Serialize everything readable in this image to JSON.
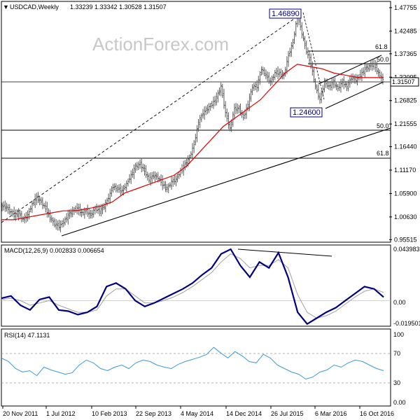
{
  "header": {
    "symbol": "USDCAD,Weekly",
    "ohlc": "1.33239 1.33342 1.30528 1.31507"
  },
  "watermark": "ActionForex.com",
  "colors": {
    "candle": "#4b4b4b",
    "ma": "#e00000",
    "macd": "#000080",
    "signal": "#a0a0a0",
    "rsi": "#3a9ad9",
    "grid": "#000000"
  },
  "chart_data": [
    {
      "type": "candlestick",
      "title": "USDCAD,Weekly",
      "ylim": [
        0.9525,
        1.4853
      ],
      "y_ticks": [
        "1.47755",
        "1.42485",
        "1.37365",
        "1.32095",
        "1.26825",
        "1.21555",
        "1.16440",
        "1.11170",
        "1.05900",
        "1.00630",
        "0.95515"
      ],
      "x_ticks": [
        "20 Nov 2011",
        "1 Jul 2012",
        "10 Feb 2013",
        "22 Sep 2013",
        "4 May 2014",
        "14 Dec 2014",
        "26 Jul 2015",
        "6 Mar 2016",
        "16 Oct 2016"
      ],
      "annotations": [
        "1.46890",
        "1.24600",
        "61.8",
        "50.0",
        "50.0",
        "61.8"
      ],
      "last_price": "1.31507",
      "close_series": [
        1.03,
        1.02,
        1.01,
        1.015,
        1.0,
        1.01,
        1.035,
        1.05,
        1.04,
        1.025,
        1.005,
        0.99,
        0.985,
        0.995,
        1.01,
        1.02,
        1.025,
        1.015,
        1.02,
        1.01,
        1.025,
        1.02,
        1.03,
        1.05,
        1.075,
        1.07,
        1.065,
        1.08,
        1.1,
        1.12,
        1.125,
        1.11,
        1.09,
        1.1,
        1.095,
        1.08,
        1.07,
        1.085,
        1.09,
        1.11,
        1.125,
        1.14,
        1.17,
        1.22,
        1.24,
        1.25,
        1.26,
        1.275,
        1.3,
        1.24,
        1.205,
        1.25,
        1.25,
        1.23,
        1.26,
        1.3,
        1.3,
        1.34,
        1.325,
        1.31,
        1.33,
        1.33,
        1.325,
        1.37,
        1.4,
        1.46,
        1.42,
        1.38,
        1.35,
        1.3,
        1.27,
        1.31,
        1.3,
        1.31,
        1.295,
        1.31,
        1.3,
        1.32,
        1.315,
        1.325,
        1.34,
        1.345,
        1.35,
        1.33,
        1.315
      ],
      "ma_series": [
        1.0,
        1.0,
        1.005,
        1.01,
        1.015,
        1.02,
        1.02,
        1.025,
        1.03,
        1.04,
        1.06,
        1.07,
        1.08,
        1.09,
        1.1,
        1.12,
        1.15,
        1.18,
        1.21,
        1.23,
        1.25,
        1.27,
        1.3,
        1.33,
        1.35,
        1.345,
        1.34,
        1.33,
        1.325,
        1.32,
        1.32,
        1.32
      ],
      "trendlines": {
        "support_from": [
          "1 Jul 2012",
          0.97
        ],
        "support_to": [
          "end",
          1.21
        ],
        "channel_upper": [
          1.32,
          1.37
        ],
        "channel_lower": [
          1.25,
          1.31
        ]
      }
    },
    {
      "type": "line",
      "title": "MACD(12,26,9) 0.002833 0.006654",
      "y_ticks": [
        "0.043983",
        "0.00",
        "-0.019501"
      ],
      "macd": [
        0.002,
        0.004,
        -0.004,
        -0.008,
        0.001,
        0.003,
        -0.008,
        -0.009,
        -0.012,
        -0.01,
        -0.005,
        0.012,
        0.015,
        0.01,
        0.0,
        -0.005,
        -0.002,
        0.002,
        0.006,
        0.01,
        0.015,
        0.022,
        0.028,
        0.04,
        0.044,
        0.03,
        0.02,
        0.033,
        0.028,
        0.041,
        0.02,
        -0.01,
        -0.02,
        -0.015,
        -0.01,
        -0.006,
        0.0,
        0.006,
        0.012,
        0.01,
        0.003
      ],
      "signal": [
        0.001,
        0.002,
        0.0,
        -0.004,
        -0.002,
        0.0,
        -0.004,
        -0.007,
        -0.01,
        -0.01,
        -0.008,
        0.004,
        0.01,
        0.01,
        0.004,
        -0.002,
        -0.002,
        0.0,
        0.003,
        0.007,
        0.012,
        0.018,
        0.024,
        0.033,
        0.04,
        0.036,
        0.028,
        0.03,
        0.03,
        0.035,
        0.028,
        0.005,
        -0.01,
        -0.015,
        -0.013,
        -0.009,
        -0.003,
        0.003,
        0.008,
        0.01,
        0.007
      ]
    },
    {
      "type": "line",
      "title": "RSI(14) 47.1131",
      "y_ticks": [
        "100",
        "70",
        "30",
        "0.00"
      ],
      "ylim": [
        0,
        100
      ],
      "rsi": [
        65,
        60,
        50,
        45,
        47,
        40,
        52,
        48,
        45,
        42,
        44,
        55,
        62,
        58,
        50,
        47,
        52,
        55,
        50,
        58,
        62,
        60,
        55,
        52,
        50,
        56,
        60,
        63,
        66,
        70,
        80,
        72,
        65,
        74,
        68,
        60,
        58,
        70,
        65,
        55,
        50,
        45,
        42,
        35,
        38,
        45,
        48,
        55,
        52,
        58,
        62,
        60,
        55,
        50,
        47
      ]
    }
  ]
}
